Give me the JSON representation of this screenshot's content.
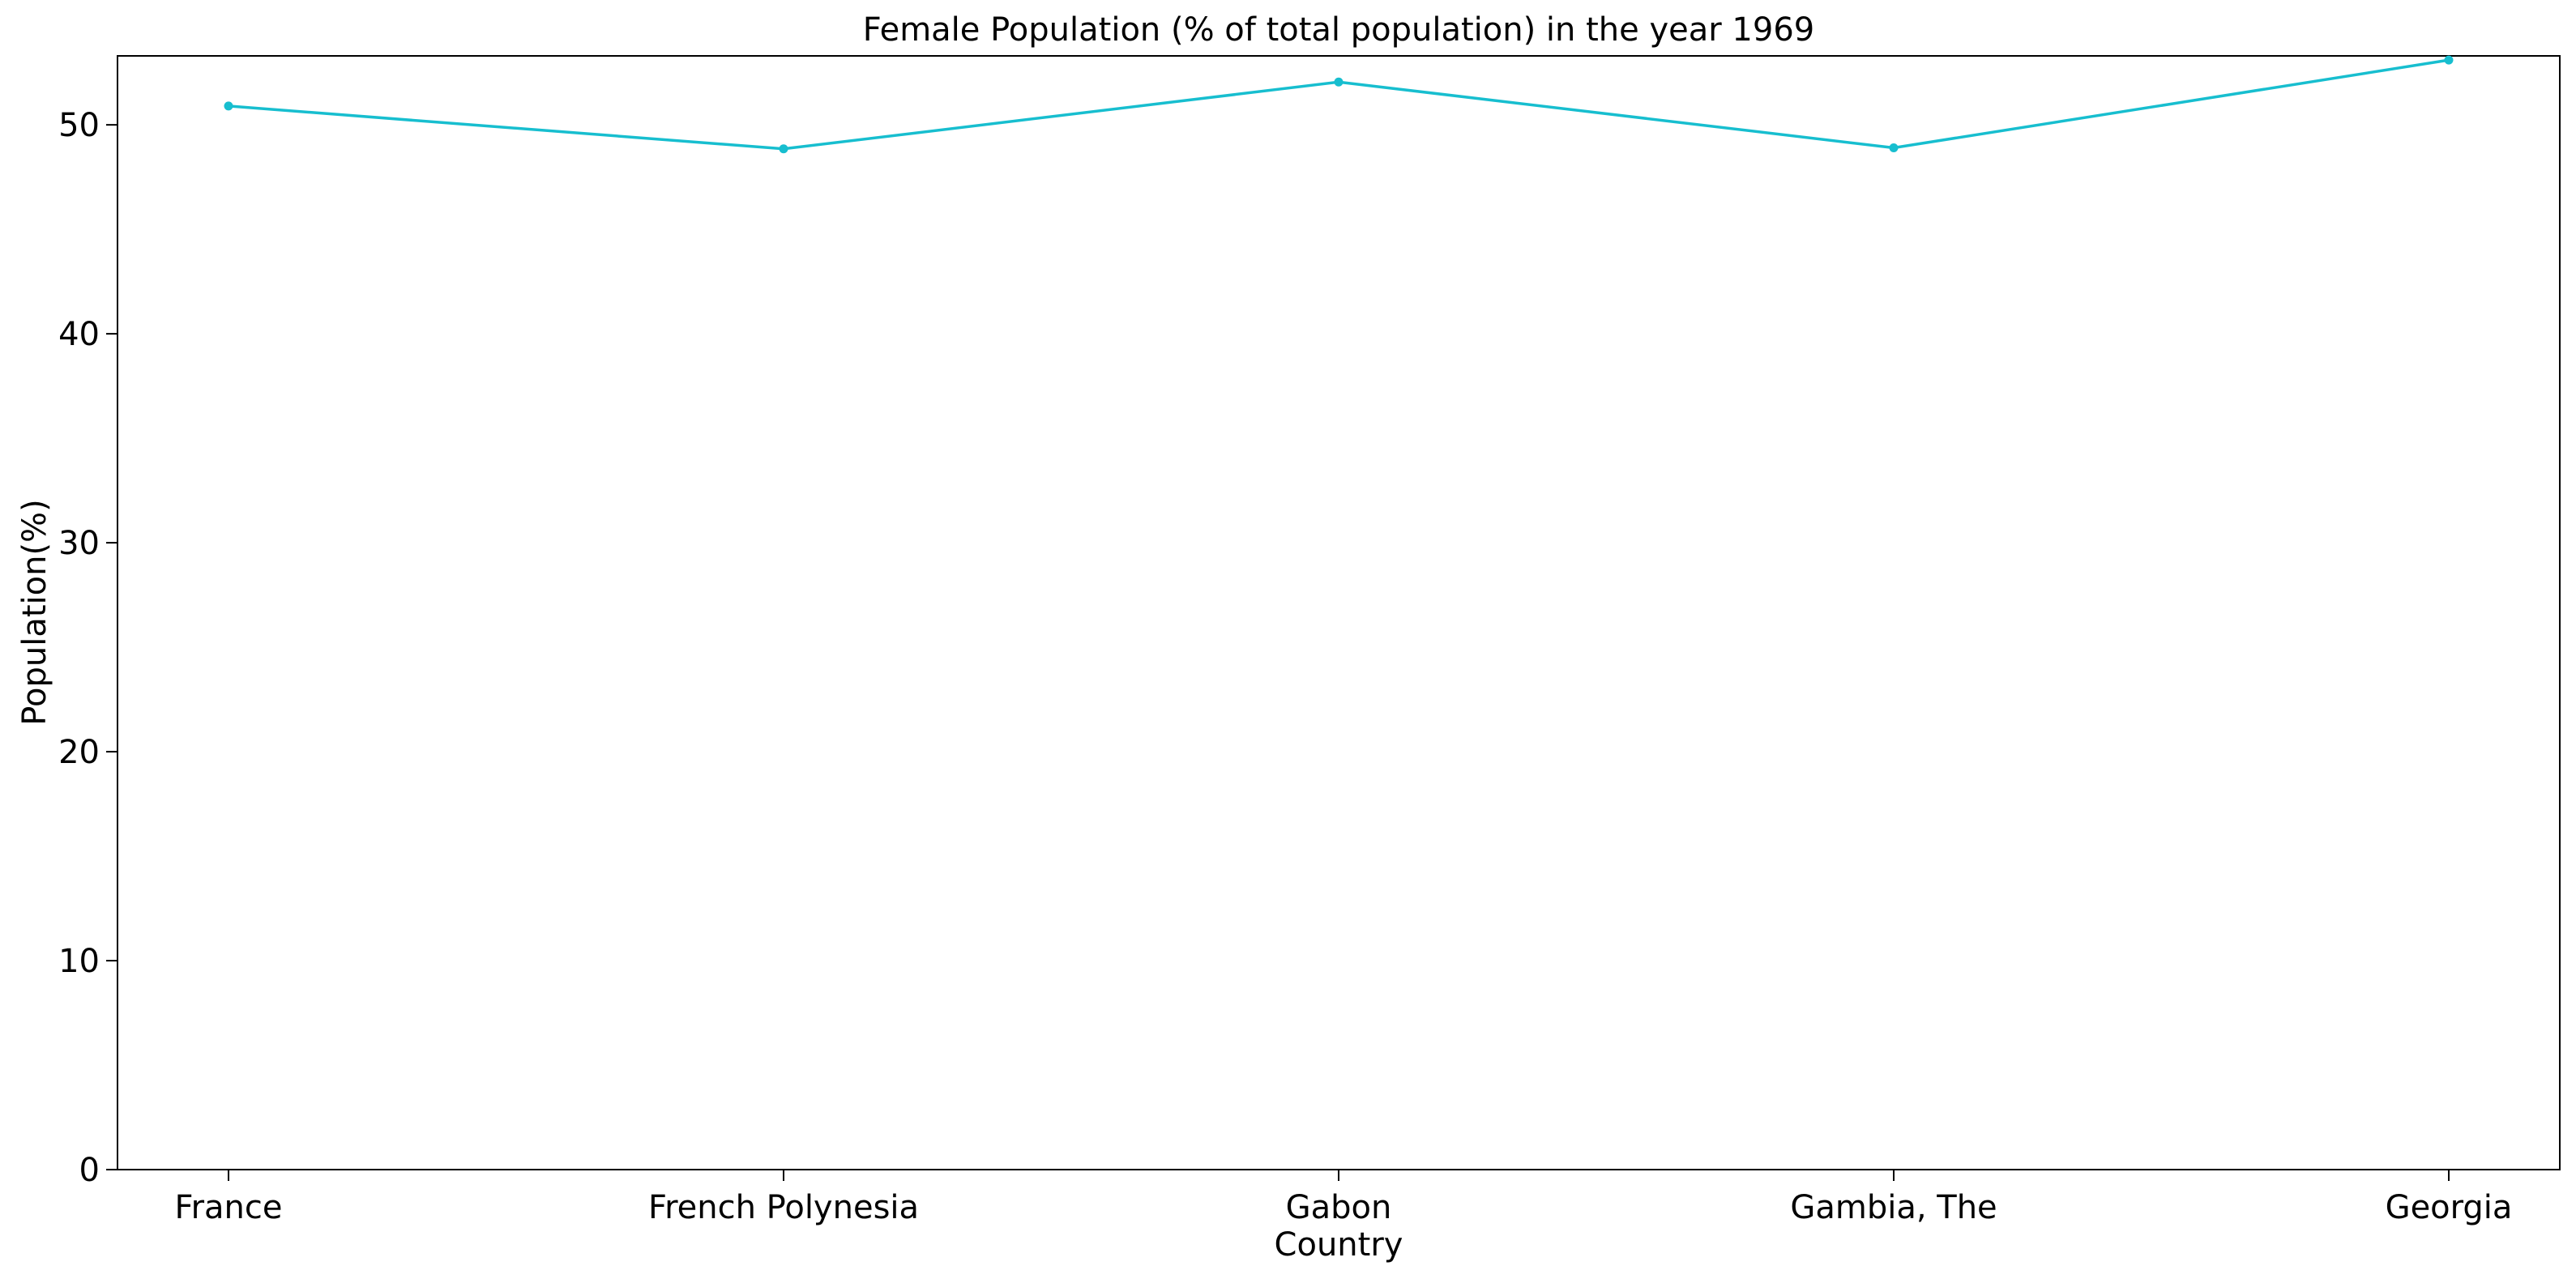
{
  "chart_data": {
    "type": "line",
    "title": "Female Population (% of total population) in the year 1969",
    "xlabel": "Country",
    "ylabel": "Population(%)",
    "categories": [
      "France",
      "French Polynesia",
      "Gabon",
      "Gambia, The",
      "Georgia"
    ],
    "series": [
      {
        "values": [
          50.9,
          48.85,
          52.05,
          48.9,
          53.1
        ],
        "color": "#17becf"
      }
    ],
    "ylim": [
      0,
      53.3
    ],
    "yticks": [
      0,
      10,
      20,
      30,
      40,
      50
    ],
    "grid": false,
    "marker": "point"
  }
}
